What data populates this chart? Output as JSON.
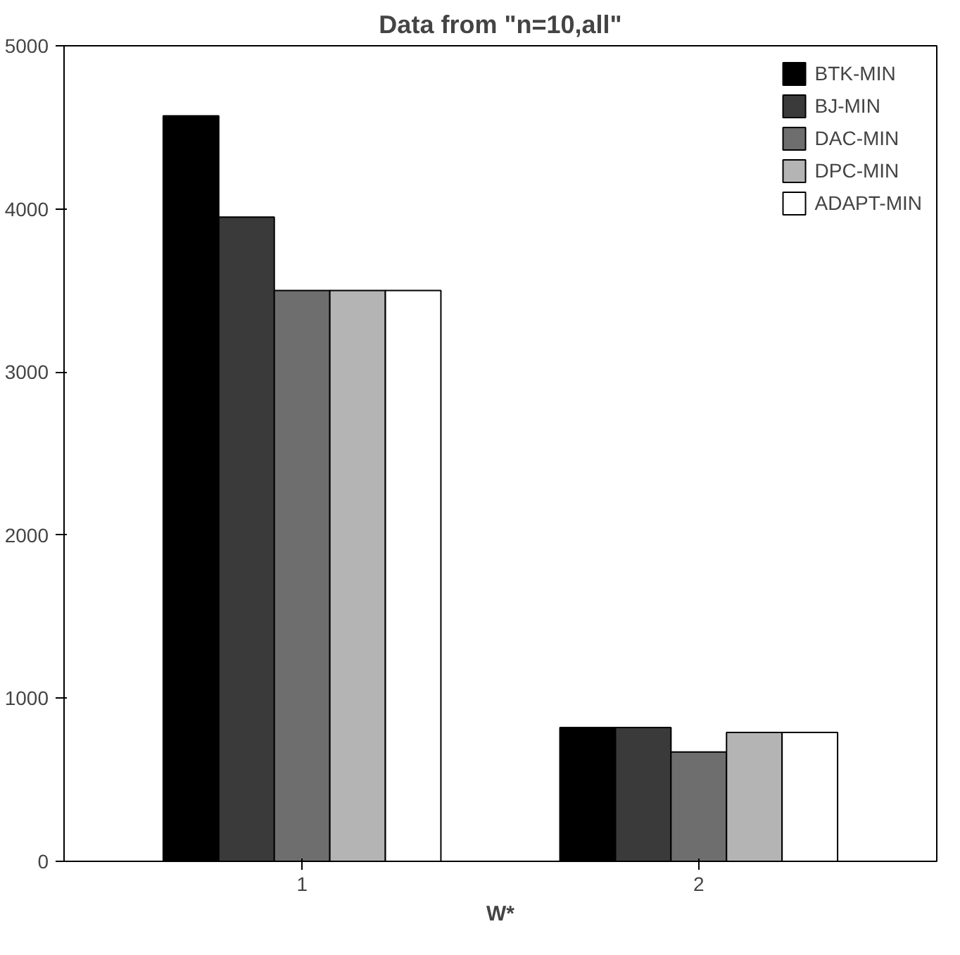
{
  "chart_data": {
    "type": "bar",
    "title": "Data from \"n=10,all\"",
    "xlabel": "W*",
    "categories": [
      "1",
      "2"
    ],
    "series": [
      {
        "name": "BTK-MIN",
        "color": "#000000",
        "values": [
          4570,
          820
        ]
      },
      {
        "name": "BJ-MIN",
        "color": "#3a3a3a",
        "values": [
          3950,
          820
        ]
      },
      {
        "name": "DAC-MIN",
        "color": "#6e6e6e",
        "values": [
          3500,
          670
        ]
      },
      {
        "name": "DPC-MIN",
        "color": "#b4b4b4",
        "values": [
          3500,
          790
        ]
      },
      {
        "name": "ADAPT-MIN",
        "color": "#ffffff",
        "values": [
          3500,
          790
        ]
      }
    ],
    "ylim": [
      0,
      5000
    ],
    "yticks": [
      0,
      1000,
      2000,
      3000,
      4000,
      5000
    ],
    "grid": false,
    "legend": "top right"
  }
}
